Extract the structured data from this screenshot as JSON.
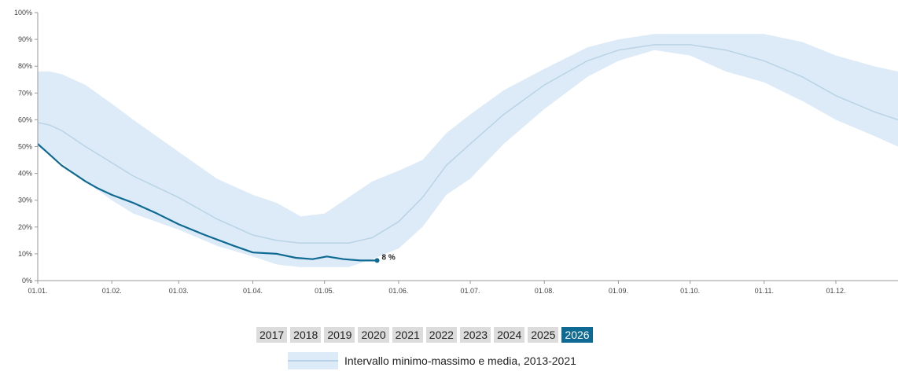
{
  "chart_data": {
    "type": "area",
    "x_axis": {
      "ticks": [
        "01.01.",
        "01.02.",
        "01.03.",
        "01.04.",
        "01.05.",
        "01.06.",
        "01.07.",
        "01.08.",
        "01.09.",
        "01.10.",
        "01.11.",
        "01.12."
      ],
      "range_days": [
        0,
        360
      ]
    },
    "y_axis": {
      "ticks": [
        "0%",
        "10%",
        "20%",
        "30%",
        "40%",
        "50%",
        "60%",
        "70%",
        "80%",
        "90%",
        "100%"
      ],
      "range": [
        0,
        100
      ]
    },
    "band": {
      "name": "Intervallo minimo-massimo e media, 2013-2021",
      "color": "#dcebf7",
      "mean_color": "#b9d3e6",
      "points": [
        {
          "day": 0,
          "min": 50,
          "max": 78,
          "mean": 59
        },
        {
          "day": 5,
          "min": 47,
          "max": 78,
          "mean": 58
        },
        {
          "day": 10,
          "min": 44,
          "max": 77,
          "mean": 56
        },
        {
          "day": 20,
          "min": 37,
          "max": 73,
          "mean": 50
        },
        {
          "day": 31,
          "min": 30,
          "max": 66,
          "mean": 44
        },
        {
          "day": 40,
          "min": 25,
          "max": 60,
          "mean": 39
        },
        {
          "day": 59,
          "min": 19,
          "max": 48,
          "mean": 31
        },
        {
          "day": 75,
          "min": 13,
          "max": 38,
          "mean": 23
        },
        {
          "day": 90,
          "min": 9,
          "max": 32,
          "mean": 17
        },
        {
          "day": 100,
          "min": 6,
          "max": 29,
          "mean": 15
        },
        {
          "day": 110,
          "min": 5,
          "max": 24,
          "mean": 14
        },
        {
          "day": 120,
          "min": 5,
          "max": 25,
          "mean": 14
        },
        {
          "day": 130,
          "min": 5,
          "max": 31,
          "mean": 14
        },
        {
          "day": 140,
          "min": 8,
          "max": 37,
          "mean": 16
        },
        {
          "day": 151,
          "min": 12,
          "max": 41,
          "mean": 22
        },
        {
          "day": 161,
          "min": 20,
          "max": 45,
          "mean": 31
        },
        {
          "day": 171,
          "min": 32,
          "max": 55,
          "mean": 43
        },
        {
          "day": 181,
          "min": 38,
          "max": 62,
          "mean": 51
        },
        {
          "day": 195,
          "min": 51,
          "max": 71,
          "mean": 62
        },
        {
          "day": 212,
          "min": 64,
          "max": 79,
          "mean": 73
        },
        {
          "day": 230,
          "min": 76,
          "max": 87,
          "mean": 82
        },
        {
          "day": 243,
          "min": 82,
          "max": 90,
          "mean": 86
        },
        {
          "day": 258,
          "min": 86,
          "max": 92,
          "mean": 88
        },
        {
          "day": 273,
          "min": 84,
          "max": 92,
          "mean": 88
        },
        {
          "day": 288,
          "min": 78,
          "max": 92,
          "mean": 86
        },
        {
          "day": 304,
          "min": 74,
          "max": 92,
          "mean": 82
        },
        {
          "day": 320,
          "min": 67,
          "max": 89,
          "mean": 76
        },
        {
          "day": 334,
          "min": 60,
          "max": 84,
          "mean": 69
        },
        {
          "day": 350,
          "min": 54,
          "max": 80,
          "mean": 63
        },
        {
          "day": 360,
          "min": 50,
          "max": 78,
          "mean": 60
        }
      ]
    },
    "series": [
      {
        "name": "2026",
        "color": "#0f6a93",
        "points": [
          {
            "day": 0,
            "value": 51
          },
          {
            "day": 5,
            "value": 47
          },
          {
            "day": 10,
            "value": 43
          },
          {
            "day": 15,
            "value": 40
          },
          {
            "day": 20,
            "value": 37
          },
          {
            "day": 25,
            "value": 34.5
          },
          {
            "day": 31,
            "value": 32
          },
          {
            "day": 40,
            "value": 29
          },
          {
            "day": 50,
            "value": 25
          },
          {
            "day": 59,
            "value": 21
          },
          {
            "day": 70,
            "value": 17
          },
          {
            "day": 82,
            "value": 13
          },
          {
            "day": 90,
            "value": 10.5
          },
          {
            "day": 100,
            "value": 10
          },
          {
            "day": 108,
            "value": 8.5
          },
          {
            "day": 115,
            "value": 8
          },
          {
            "day": 121,
            "value": 9
          },
          {
            "day": 128,
            "value": 8
          },
          {
            "day": 135,
            "value": 7.5
          },
          {
            "day": 142,
            "value": 7.5
          }
        ],
        "end_label": "8 %"
      }
    ],
    "legend_placement": "bottom-center",
    "grid": false
  },
  "years": [
    "2017",
    "2018",
    "2019",
    "2020",
    "2021",
    "2022",
    "2023",
    "2024",
    "2025",
    "2026"
  ],
  "active_year": "2026",
  "legend": {
    "label": "Intervallo minimo-massimo e media, 2013-2021"
  }
}
